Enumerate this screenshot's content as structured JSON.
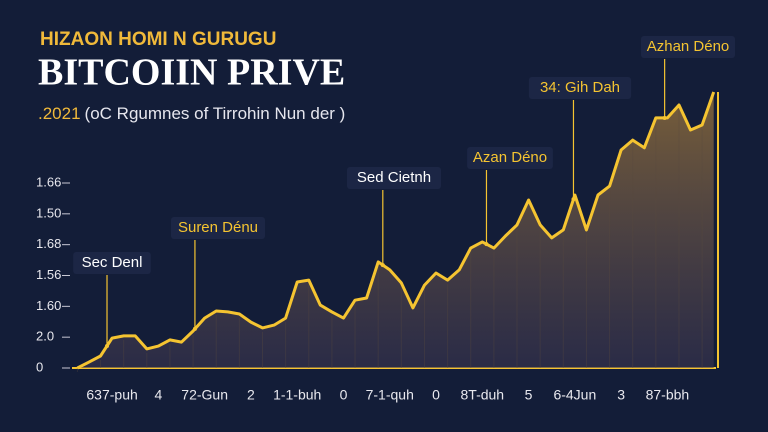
{
  "chart_data": {
    "type": "line",
    "kicker": "HIZAON HOMI N GURUGU",
    "title": "BITCOIIN PRIVE",
    "subtitle_year": ".2021",
    "subtitle": "(oC Rgumnes of Tirrohin Nun der )",
    "x": [
      -0.75,
      -0.5,
      -0.25,
      0,
      0.25,
      0.5,
      0.75,
      1,
      1.25,
      1.5,
      1.75,
      2,
      2.25,
      2.5,
      2.75,
      3,
      3.25,
      3.5,
      3.75,
      4,
      4.25,
      4.5,
      4.75,
      5,
      5.25,
      5.5,
      5.75,
      6,
      6.25,
      6.5,
      6.75,
      7,
      7.25,
      7.5,
      7.75,
      8,
      8.25,
      8.5,
      8.75,
      9,
      9.25,
      9.5,
      9.75,
      10,
      10.25,
      10.5,
      10.75,
      11,
      11.25,
      11.5,
      11.75,
      12,
      12.25,
      12.5,
      12.75,
      13
    ],
    "series": [
      {
        "color": "#f5c431",
        "values": [
          0,
          0.19,
          0.39,
          0.97,
          1.04,
          1.04,
          0.62,
          0.71,
          0.91,
          0.84,
          1.2,
          1.62,
          1.85,
          1.82,
          1.75,
          1.49,
          1.3,
          1.39,
          1.62,
          2.79,
          2.85,
          2.04,
          1.82,
          1.62,
          2.2,
          2.27,
          3.44,
          3.18,
          2.76,
          1.95,
          2.69,
          3.08,
          2.85,
          3.18,
          3.89,
          4.09,
          3.89,
          4.28,
          4.64,
          5.45,
          4.64,
          4.22,
          4.48,
          5.61,
          4.48,
          5.61,
          5.9,
          7.07,
          7.39,
          7.14,
          8.11,
          8.11,
          8.53,
          7.72,
          7.88,
          8.95
        ]
      }
    ],
    "xlim": [
      -0.78,
      13.05
    ],
    "ylim": [
      0,
      9.6
    ],
    "yticks": [
      0,
      {
        "value": 1,
        "label": "2.0"
      },
      {
        "value": 2,
        "label": "1.60"
      },
      {
        "value": 3,
        "label": "1.56"
      },
      {
        "value": 4,
        "label": "1.68"
      },
      {
        "value": 5,
        "label": "1.50"
      },
      {
        "value": 6,
        "label": "1.66"
      }
    ],
    "xticks": [
      {
        "value": 0,
        "label": "637-puh"
      },
      {
        "value": 1,
        "label": "4"
      },
      {
        "value": 2,
        "label": "72-Gun"
      },
      {
        "value": 3,
        "label": "2"
      },
      {
        "value": 4,
        "label": "1-1-buh"
      },
      {
        "value": 5,
        "label": "0"
      },
      {
        "value": 6,
        "label": "7-1-quh"
      },
      {
        "value": 7,
        "label": "0"
      },
      {
        "value": 8,
        "label": "8T-duh"
      },
      {
        "value": 9,
        "label": "5"
      },
      {
        "value": 10,
        "label": "6-4Jun"
      },
      {
        "value": 11,
        "label": "3"
      },
      {
        "value": 12,
        "label": "87-bbh"
      }
    ],
    "annotations": [
      {
        "text": "Sec Denl",
        "x": -0.11
      },
      {
        "text": "Suren Dénu",
        "x": 1.79
      },
      {
        "text": "Sed Cietnh",
        "x": 5.85
      },
      {
        "text": "Azan Déno",
        "x": 8.09
      },
      {
        "text": "34: Gih Dah",
        "x": 9.97
      },
      {
        "text": "Azhan Déno",
        "x": 11.94
      }
    ]
  }
}
